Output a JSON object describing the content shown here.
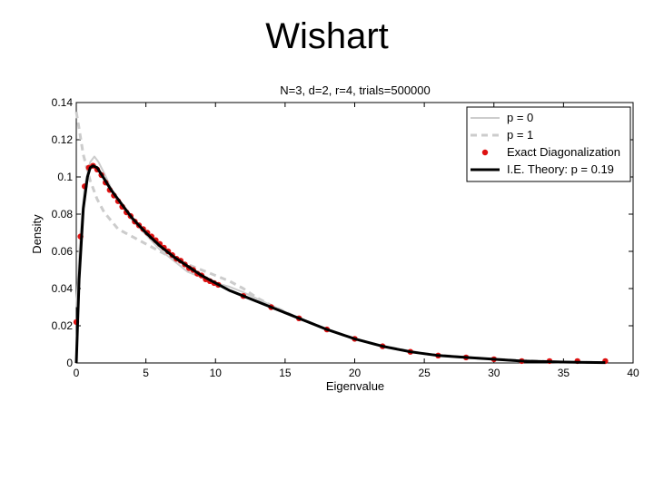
{
  "slide": {
    "title": "Wishart"
  },
  "chart_data": {
    "type": "line",
    "title": "N=3, d=2, r=4, trials=500000",
    "xlabel": "Eigenvalue",
    "ylabel": "Density",
    "xlim": [
      0,
      40
    ],
    "ylim": [
      0,
      0.14
    ],
    "xticks": [
      "0",
      "5",
      "10",
      "15",
      "20",
      "25",
      "30",
      "35",
      "40"
    ],
    "yticks": [
      "0",
      "0.02",
      "0.04",
      "0.06",
      "0.08",
      "0.1",
      "0.12",
      "0.14"
    ],
    "legend": "top-right",
    "grid": false,
    "series": [
      {
        "name": "p = 0",
        "style": "solid-light-gray",
        "color": "#cccccc",
        "x": [
          0,
          0.3,
          0.6,
          1.0,
          1.3,
          1.6,
          2,
          2.5,
          3,
          4,
          5,
          6,
          7,
          8,
          9,
          10,
          11,
          12,
          14,
          16,
          18,
          20,
          22,
          25,
          28,
          30,
          35,
          38
        ],
        "y": [
          0.03,
          0.07,
          0.095,
          0.108,
          0.111,
          0.108,
          0.102,
          0.094,
          0.087,
          0.077,
          0.069,
          0.061,
          0.055,
          0.049,
          0.046,
          0.043,
          0.041,
          0.038,
          0.031,
          0.024,
          0.018,
          0.013,
          0.009,
          0.005,
          0.003,
          0.002,
          0.0005,
          0.0002
        ]
      },
      {
        "name": "p = 1",
        "style": "dashed-light-gray",
        "color": "#cccccc",
        "x": [
          0,
          0.2,
          0.5,
          1,
          1.5,
          2,
          3,
          4,
          5,
          6,
          7,
          8,
          9,
          10,
          11,
          12,
          13,
          14,
          16,
          18,
          20,
          22,
          25,
          28,
          30,
          35,
          38
        ],
        "y": [
          0.135,
          0.126,
          0.112,
          0.098,
          0.088,
          0.081,
          0.072,
          0.068,
          0.064,
          0.06,
          0.056,
          0.053,
          0.05,
          0.047,
          0.044,
          0.04,
          0.035,
          0.031,
          0.024,
          0.018,
          0.013,
          0.009,
          0.005,
          0.003,
          0.002,
          0.0005,
          0.0002
        ]
      },
      {
        "name": "Exact Diagonalization",
        "style": "markers-red",
        "color": "#dd1111",
        "x": [
          0,
          0.3,
          0.6,
          0.9,
          1.2,
          1.5,
          1.8,
          2.1,
          2.4,
          2.7,
          3.0,
          3.3,
          3.6,
          3.9,
          4.2,
          4.5,
          4.8,
          5.1,
          5.4,
          5.7,
          6.0,
          6.3,
          6.6,
          6.9,
          7.2,
          7.5,
          7.8,
          8.1,
          8.4,
          8.7,
          9.0,
          9.3,
          9.6,
          9.9,
          10.2,
          12,
          14,
          16,
          18,
          20,
          22,
          24,
          26,
          28,
          30,
          32,
          34,
          36,
          38
        ],
        "y": [
          0.022,
          0.068,
          0.095,
          0.105,
          0.106,
          0.104,
          0.101,
          0.097,
          0.093,
          0.09,
          0.087,
          0.084,
          0.081,
          0.079,
          0.076,
          0.074,
          0.072,
          0.07,
          0.068,
          0.066,
          0.064,
          0.062,
          0.06,
          0.058,
          0.056,
          0.055,
          0.053,
          0.051,
          0.05,
          0.048,
          0.047,
          0.045,
          0.044,
          0.043,
          0.042,
          0.036,
          0.03,
          0.024,
          0.018,
          0.013,
          0.009,
          0.006,
          0.004,
          0.003,
          0.002,
          0.001,
          0.001,
          0.001,
          0.001
        ]
      },
      {
        "name": "I.E. Theory: p = 0.19",
        "style": "solid-black-thick",
        "color": "#000000",
        "x": [
          0,
          0.2,
          0.5,
          0.8,
          1.0,
          1.2,
          1.5,
          2,
          2.5,
          3,
          4,
          5,
          6,
          7,
          8,
          9,
          10,
          11,
          12,
          14,
          16,
          18,
          20,
          22,
          24,
          26,
          28,
          30,
          32,
          35,
          38
        ],
        "y": [
          0.0,
          0.045,
          0.083,
          0.1,
          0.105,
          0.106,
          0.105,
          0.099,
          0.093,
          0.088,
          0.078,
          0.07,
          0.063,
          0.057,
          0.052,
          0.047,
          0.043,
          0.039,
          0.036,
          0.03,
          0.024,
          0.018,
          0.013,
          0.009,
          0.006,
          0.004,
          0.003,
          0.002,
          0.001,
          0.0005,
          0.0002
        ]
      }
    ]
  }
}
